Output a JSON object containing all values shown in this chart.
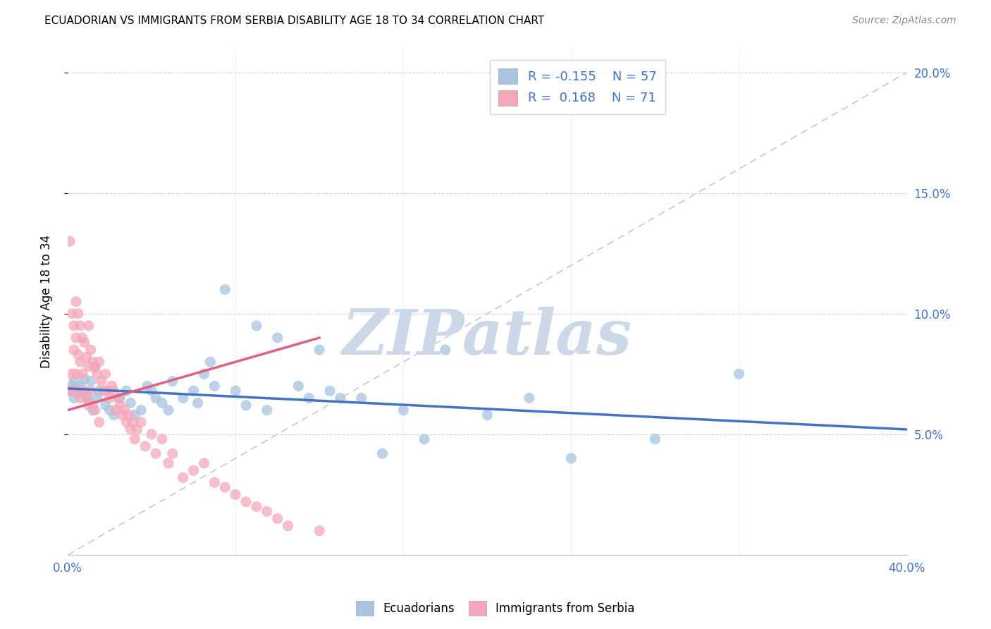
{
  "title": "ECUADORIAN VS IMMIGRANTS FROM SERBIA DISABILITY AGE 18 TO 34 CORRELATION CHART",
  "source": "Source: ZipAtlas.com",
  "ylabel": "Disability Age 18 to 34",
  "xlim": [
    0.0,
    0.4
  ],
  "ylim": [
    0.0,
    0.21
  ],
  "blue_color": "#a8c4e0",
  "blue_line_color": "#4472c4",
  "pink_color": "#f4a7b9",
  "pink_line_color": "#e06080",
  "diagonal_color": "#c8c8c8",
  "blue_scatter_x": [
    0.001,
    0.002,
    0.003,
    0.003,
    0.004,
    0.005,
    0.006,
    0.007,
    0.008,
    0.009,
    0.01,
    0.011,
    0.012,
    0.013,
    0.014,
    0.015,
    0.018,
    0.02,
    0.022,
    0.025,
    0.028,
    0.03,
    0.032,
    0.035,
    0.038,
    0.04,
    0.042,
    0.045,
    0.048,
    0.05,
    0.055,
    0.06,
    0.062,
    0.065,
    0.068,
    0.07,
    0.075,
    0.08,
    0.085,
    0.09,
    0.095,
    0.1,
    0.11,
    0.115,
    0.12,
    0.125,
    0.13,
    0.14,
    0.15,
    0.16,
    0.17,
    0.18,
    0.2,
    0.22,
    0.24,
    0.28,
    0.32
  ],
  "blue_scatter_y": [
    0.068,
    0.07,
    0.072,
    0.065,
    0.069,
    0.067,
    0.07,
    0.068,
    0.073,
    0.066,
    0.064,
    0.072,
    0.06,
    0.078,
    0.065,
    0.068,
    0.062,
    0.06,
    0.058,
    0.065,
    0.068,
    0.063,
    0.058,
    0.06,
    0.07,
    0.068,
    0.065,
    0.063,
    0.06,
    0.072,
    0.065,
    0.068,
    0.063,
    0.075,
    0.08,
    0.07,
    0.11,
    0.068,
    0.062,
    0.095,
    0.06,
    0.09,
    0.07,
    0.065,
    0.085,
    0.068,
    0.065,
    0.065,
    0.042,
    0.06,
    0.048,
    0.085,
    0.058,
    0.065,
    0.04,
    0.048,
    0.075
  ],
  "pink_scatter_x": [
    0.001,
    0.001,
    0.002,
    0.002,
    0.003,
    0.003,
    0.003,
    0.004,
    0.004,
    0.004,
    0.005,
    0.005,
    0.005,
    0.006,
    0.006,
    0.006,
    0.007,
    0.007,
    0.008,
    0.008,
    0.009,
    0.009,
    0.01,
    0.01,
    0.01,
    0.011,
    0.011,
    0.012,
    0.012,
    0.013,
    0.013,
    0.014,
    0.015,
    0.015,
    0.016,
    0.017,
    0.018,
    0.019,
    0.02,
    0.021,
    0.022,
    0.023,
    0.024,
    0.025,
    0.026,
    0.027,
    0.028,
    0.029,
    0.03,
    0.031,
    0.032,
    0.033,
    0.035,
    0.037,
    0.04,
    0.042,
    0.045,
    0.048,
    0.05,
    0.055,
    0.06,
    0.065,
    0.07,
    0.075,
    0.08,
    0.085,
    0.09,
    0.095,
    0.1,
    0.105,
    0.12
  ],
  "pink_scatter_y": [
    0.13,
    0.068,
    0.1,
    0.075,
    0.095,
    0.085,
    0.068,
    0.105,
    0.09,
    0.075,
    0.1,
    0.083,
    0.068,
    0.095,
    0.08,
    0.065,
    0.09,
    0.075,
    0.088,
    0.068,
    0.082,
    0.065,
    0.095,
    0.078,
    0.062,
    0.085,
    0.068,
    0.08,
    0.062,
    0.078,
    0.06,
    0.075,
    0.08,
    0.055,
    0.072,
    0.068,
    0.075,
    0.068,
    0.065,
    0.07,
    0.068,
    0.06,
    0.065,
    0.062,
    0.058,
    0.06,
    0.055,
    0.058,
    0.052,
    0.055,
    0.048,
    0.052,
    0.055,
    0.045,
    0.05,
    0.042,
    0.048,
    0.038,
    0.042,
    0.032,
    0.035,
    0.038,
    0.03,
    0.028,
    0.025,
    0.022,
    0.02,
    0.018,
    0.015,
    0.012,
    0.01
  ],
  "blue_trend_x": [
    0.0,
    0.4
  ],
  "blue_trend_y": [
    0.069,
    0.052
  ],
  "pink_trend_x": [
    0.0,
    0.12
  ],
  "pink_trend_y": [
    0.06,
    0.09
  ]
}
